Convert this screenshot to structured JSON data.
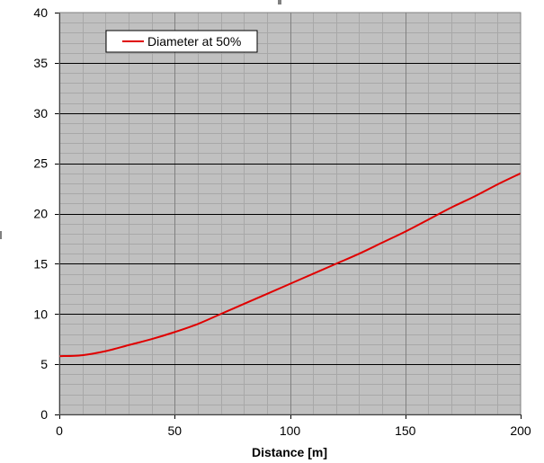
{
  "chart_data": {
    "type": "line",
    "title": "",
    "xlabel": "Distance [m]",
    "ylabel": "",
    "xlim": [
      0,
      200
    ],
    "ylim": [
      0,
      40
    ],
    "x_ticks": [
      "0",
      "50",
      "100",
      "150",
      "200"
    ],
    "y_ticks": [
      "0",
      "5",
      "10",
      "15",
      "20",
      "25",
      "30",
      "35",
      "40"
    ],
    "grid": true,
    "legend": "top-left",
    "series": [
      {
        "name": "Diameter at 50%",
        "color": "#e00000",
        "x": [
          0,
          10,
          20,
          30,
          40,
          50,
          60,
          70,
          80,
          90,
          100,
          110,
          120,
          130,
          140,
          150,
          160,
          170,
          180,
          190,
          200
        ],
        "y": [
          5.8,
          5.9,
          6.3,
          6.9,
          7.5,
          8.2,
          9.0,
          10.0,
          11.0,
          12.0,
          13.0,
          14.0,
          15.0,
          16.0,
          17.1,
          18.2,
          19.4,
          20.6,
          21.7,
          22.9,
          24.0
        ]
      }
    ],
    "colors": {
      "plot_background": "#c0c0c0",
      "major_grid": "#000000",
      "minor_grid": "#a8a8a8"
    }
  }
}
